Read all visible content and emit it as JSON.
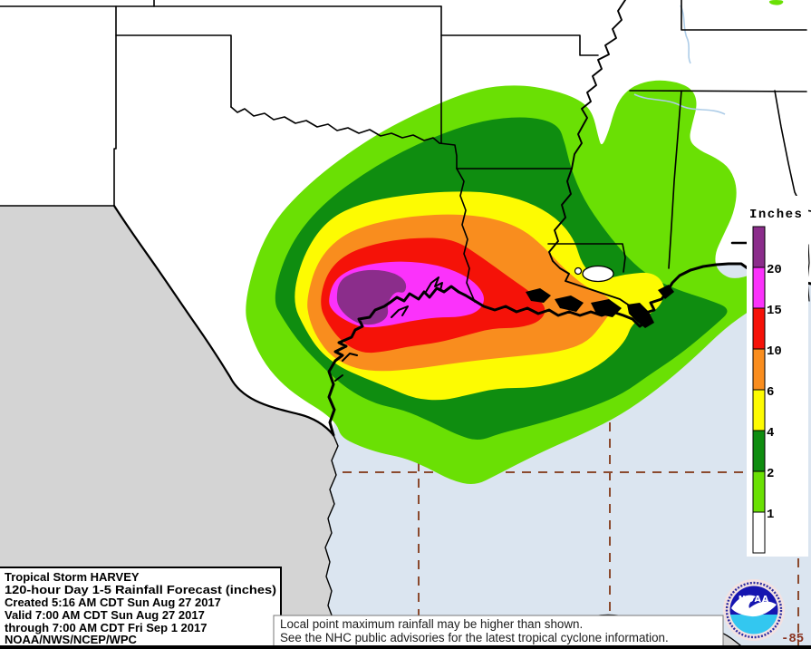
{
  "title_box": {
    "lines": [
      "Tropical Storm HARVEY",
      "120-hour Day 1-5 Rainfall Forecast (inches)",
      "Created 5:16 AM CDT Sun Aug 27 2017",
      "Valid 7:00 AM CDT Sun Aug 27 2017",
      "through 7:00 AM CDT Fri Sep 1 2017",
      "NOAA/NWS/NCEP/WPC"
    ]
  },
  "note_box": {
    "lines": [
      "Local point maximum rainfall may be higher than shown.",
      "See the NHC public advisories for the latest tropical cyclone information."
    ]
  },
  "legend": {
    "title": "Inches",
    "labels": [
      "20",
      "15",
      "10",
      "6",
      "4",
      "2",
      "1"
    ],
    "colors": {
      "purple": "#8b2d8b",
      "magenta": "#fb32fb",
      "red": "#f51208",
      "orange": "#f98d1e",
      "yellow": "#fdfb02",
      "dark_green": "#0f8d10",
      "light_green": "#6ae004",
      "white": "#ffffff"
    }
  },
  "gridlines": {
    "label": "-85"
  },
  "logo": {
    "label": "NOAA"
  },
  "map_colors": {
    "water": "#dbe5f0",
    "outside_region": "#d4d4d4",
    "gridline": "#8b4a2e",
    "river": "#aecde8",
    "border": "#000000"
  }
}
